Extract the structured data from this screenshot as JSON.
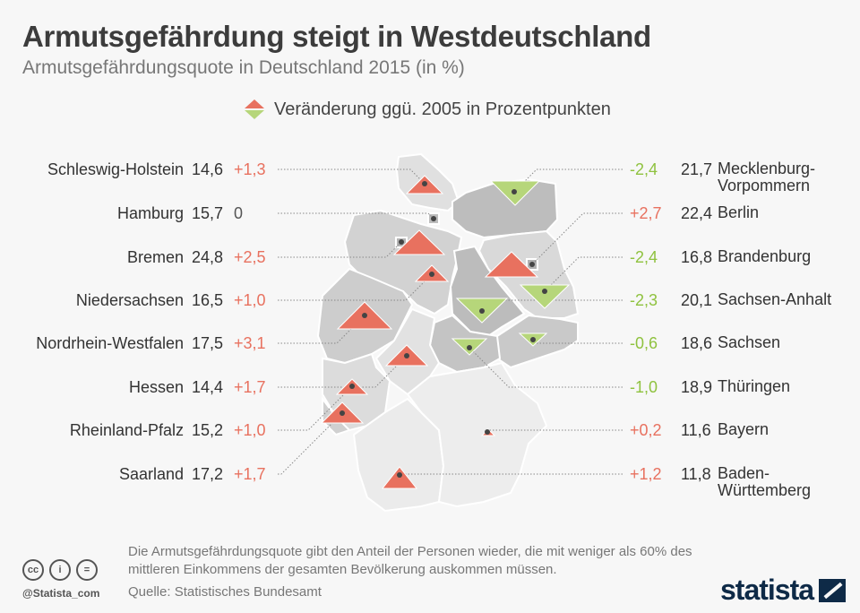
{
  "title": "Armutsgefährdung steigt in Westdeutschland",
  "subtitle": "Armutsgefährdungsquote in Deutschland 2015 (in %)",
  "legend": "Veränderung ggü. 2005 in Prozentpunkten",
  "colors": {
    "increase": "#e8715f",
    "decrease": "#b6d67a",
    "text_increase": "#e8715f",
    "text_decrease": "#8fc23f"
  },
  "left_states": [
    {
      "name": "Schleswig-Holstein",
      "rate": "14,6",
      "change": "+1,3"
    },
    {
      "name": "Hamburg",
      "rate": "15,7",
      "change": "0"
    },
    {
      "name": "Bremen",
      "rate": "24,8",
      "change": "+2,5"
    },
    {
      "name": "Niedersachsen",
      "rate": "16,5",
      "change": "+1,0"
    },
    {
      "name": "Nordrhein-Westfalen",
      "rate": "17,5",
      "change": "+3,1"
    },
    {
      "name": "Hessen",
      "rate": "14,4",
      "change": "+1,7"
    },
    {
      "name": "Rheinland-Pfalz",
      "rate": "15,2",
      "change": "+1,0"
    },
    {
      "name": "Saarland",
      "rate": "17,2",
      "change": "+1,7"
    }
  ],
  "right_states": [
    {
      "name": "Mecklenburg-\nVorpommern",
      "rate": "21,7",
      "change": "-2,4"
    },
    {
      "name": "Berlin",
      "rate": "22,4",
      "change": "+2,7"
    },
    {
      "name": "Brandenburg",
      "rate": "16,8",
      "change": "-2,4"
    },
    {
      "name": "Sachsen-Anhalt",
      "rate": "20,1",
      "change": "-2,3"
    },
    {
      "name": "Sachsen",
      "rate": "18,6",
      "change": "-0,6"
    },
    {
      "name": "Thüringen",
      "rate": "18,9",
      "change": "-1,0"
    },
    {
      "name": "Bayern",
      "rate": "11,6",
      "change": "+0,2"
    },
    {
      "name": "Baden-\nWürttemberg",
      "rate": "11,8",
      "change": "+1,2"
    }
  ],
  "footnote": "Die Armutsgefährdungsquote gibt den Anteil der Personen wieder, die mit weniger als 60% des mittleren Einkommens der gesamten Bevölkerung auskommen müssen.",
  "source": "Quelle: Statistisches Bundesamt",
  "handle": "@Statista_com",
  "logo": "statista"
}
